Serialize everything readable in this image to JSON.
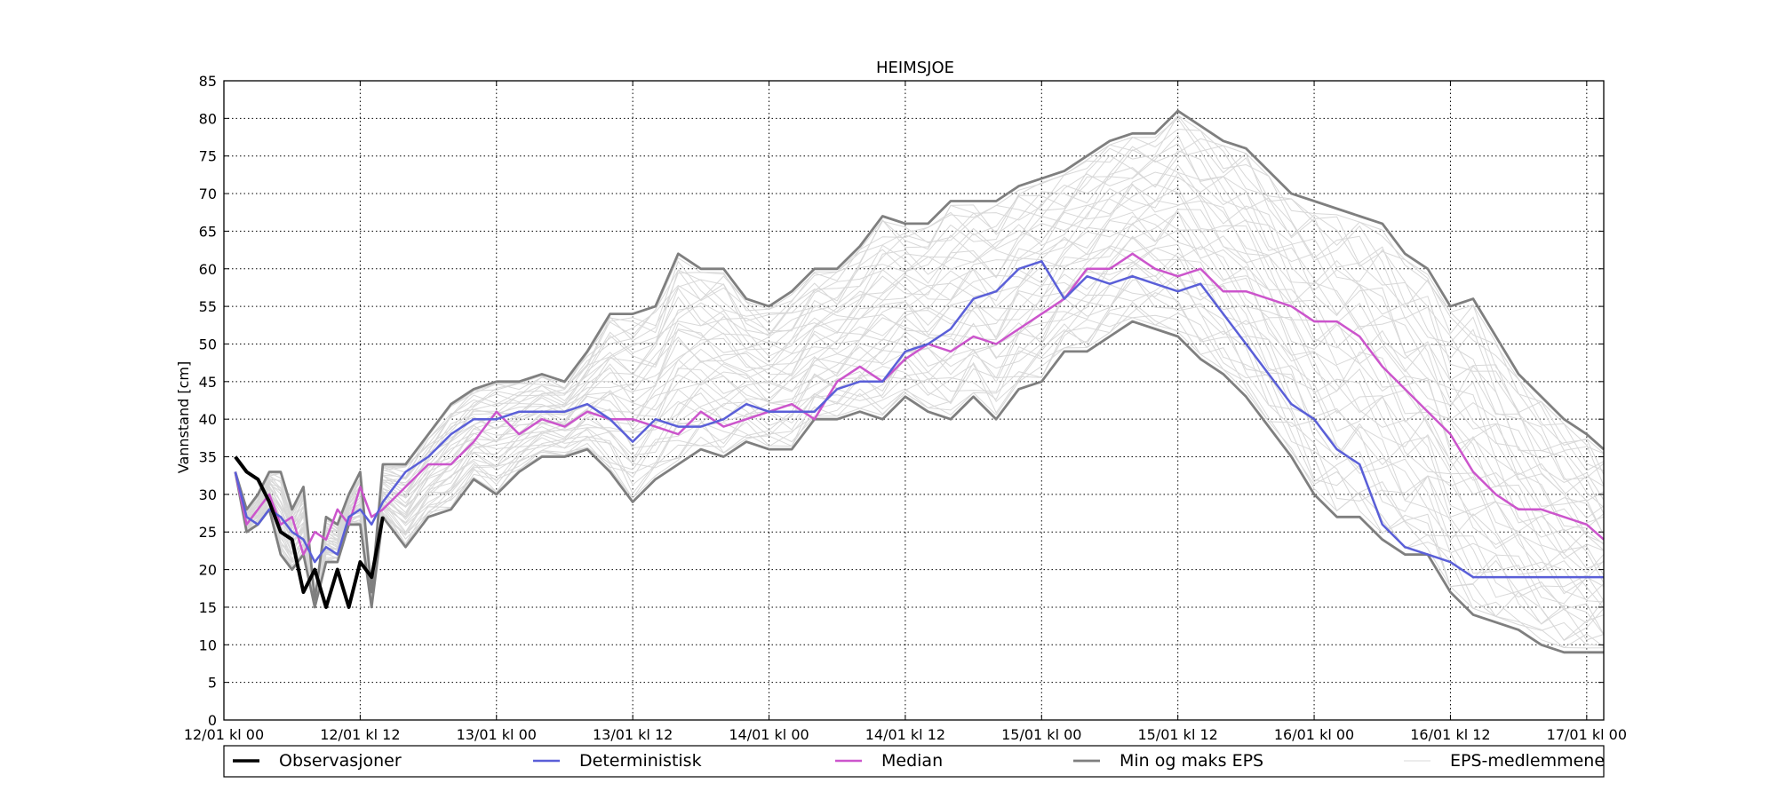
{
  "chart_data": {
    "type": "line",
    "title": "HEIMSJOE",
    "ylabel": "Vannstand [cm]",
    "xlabel": "",
    "ylim": [
      0,
      85
    ],
    "yticks": [
      0,
      5,
      10,
      15,
      20,
      25,
      30,
      35,
      40,
      45,
      50,
      55,
      60,
      65,
      70,
      75,
      80,
      85
    ],
    "x_unit": "hours",
    "xlim_hours": [
      0,
      121.5
    ],
    "xticks": [
      {
        "label": "12/01 kl 00",
        "h": 0
      },
      {
        "label": "12/01 kl 12",
        "h": 12
      },
      {
        "label": "13/01 kl 00",
        "h": 24
      },
      {
        "label": "13/01 kl 12",
        "h": 36
      },
      {
        "label": "14/01 kl 00",
        "h": 48
      },
      {
        "label": "14/01 kl 12",
        "h": 60
      },
      {
        "label": "15/01 kl 00",
        "h": 72
      },
      {
        "label": "15/01 kl 12",
        "h": 84
      },
      {
        "label": "16/01 kl 00",
        "h": 96
      },
      {
        "label": "16/01 kl 12",
        "h": 108
      },
      {
        "label": "17/01 kl 00",
        "h": 120
      }
    ],
    "grid": true,
    "legend_position": "bottom",
    "colors": {
      "observations": "#000000",
      "deterministic": "#5a5fd8",
      "median": "#cc55cc",
      "minmax": "#7f7f7f",
      "members": "#d8d8d8"
    },
    "legend": [
      {
        "label": "Observasjoner",
        "key": "observations"
      },
      {
        "label": "Deterministisk",
        "key": "deterministic"
      },
      {
        "label": "Median",
        "key": "median"
      },
      {
        "label": "Min og maks EPS",
        "key": "minmax"
      },
      {
        "label": "EPS-medlemmene",
        "key": "members"
      }
    ],
    "series": {
      "observations": {
        "name": "Observasjoner",
        "x": [
          1,
          2,
          3,
          4,
          5,
          6,
          7,
          8,
          9,
          10,
          11,
          12,
          13,
          14
        ],
        "y": [
          35,
          33,
          32,
          29,
          25,
          24,
          17,
          20,
          15,
          20,
          15,
          21,
          19,
          27
        ]
      },
      "deterministic": {
        "name": "Deterministisk",
        "x": [
          1,
          2,
          3,
          4,
          5,
          6,
          7,
          8,
          9,
          10,
          11,
          12,
          13,
          14,
          16,
          18,
          20,
          22,
          24,
          26,
          28,
          30,
          32,
          34,
          36,
          38,
          40,
          42,
          44,
          46,
          48,
          50,
          52,
          54,
          56,
          58,
          60,
          62,
          64,
          66,
          68,
          70,
          72,
          74,
          76,
          78,
          80,
          82,
          84,
          86,
          88,
          90,
          92,
          94,
          96,
          98,
          100,
          102,
          104,
          106,
          108,
          110,
          112,
          114,
          116,
          118,
          120,
          121.5
        ],
        "y": [
          33,
          27,
          26,
          28,
          27,
          25,
          24,
          21,
          23,
          22,
          27,
          28,
          26,
          29,
          33,
          35,
          38,
          40,
          40,
          41,
          41,
          41,
          42,
          40,
          37,
          40,
          39,
          39,
          40,
          42,
          41,
          41,
          41,
          44,
          45,
          45,
          49,
          50,
          52,
          56,
          57,
          60,
          61,
          56,
          59,
          58,
          59,
          58,
          57,
          58,
          54,
          50,
          46,
          42,
          40,
          36,
          34,
          26,
          23,
          22,
          21,
          19,
          19,
          19,
          19,
          19,
          19,
          19
        ]
      },
      "median": {
        "name": "Median",
        "x": [
          1,
          2,
          3,
          4,
          5,
          6,
          7,
          8,
          9,
          10,
          11,
          12,
          13,
          14,
          16,
          18,
          20,
          22,
          24,
          26,
          28,
          30,
          32,
          34,
          36,
          38,
          40,
          42,
          44,
          46,
          48,
          50,
          52,
          54,
          56,
          58,
          60,
          62,
          64,
          66,
          68,
          70,
          72,
          74,
          76,
          78,
          80,
          82,
          84,
          86,
          88,
          90,
          92,
          94,
          96,
          98,
          100,
          102,
          104,
          106,
          108,
          110,
          112,
          114,
          116,
          118,
          120,
          121.5
        ],
        "y": [
          33,
          26,
          28,
          30,
          26,
          27,
          22,
          25,
          24,
          28,
          26,
          31,
          27,
          28,
          31,
          34,
          34,
          37,
          41,
          38,
          40,
          39,
          41,
          40,
          40,
          39,
          38,
          41,
          39,
          40,
          41,
          42,
          40,
          45,
          47,
          45,
          48,
          50,
          49,
          51,
          50,
          52,
          54,
          56,
          60,
          60,
          62,
          60,
          59,
          60,
          57,
          57,
          56,
          55,
          53,
          53,
          51,
          47,
          44,
          41,
          38,
          33,
          30,
          28,
          28,
          27,
          26,
          24
        ]
      },
      "min": {
        "name": "Min",
        "x": [
          1,
          2,
          3,
          4,
          5,
          6,
          7,
          8,
          9,
          10,
          11,
          12,
          13,
          14,
          16,
          18,
          20,
          22,
          24,
          26,
          28,
          30,
          32,
          34,
          36,
          38,
          40,
          42,
          44,
          46,
          48,
          50,
          52,
          54,
          56,
          58,
          60,
          62,
          64,
          66,
          68,
          70,
          72,
          74,
          76,
          78,
          80,
          82,
          84,
          86,
          88,
          90,
          92,
          94,
          96,
          98,
          100,
          102,
          104,
          106,
          108,
          110,
          112,
          114,
          116,
          118,
          120,
          121.5
        ],
        "y": [
          33,
          25,
          26,
          28,
          22,
          20,
          22,
          15,
          21,
          21,
          26,
          26,
          15,
          27,
          23,
          27,
          28,
          32,
          30,
          33,
          35,
          35,
          36,
          33,
          29,
          32,
          34,
          36,
          35,
          37,
          36,
          36,
          40,
          40,
          41,
          40,
          43,
          41,
          40,
          43,
          40,
          44,
          45,
          49,
          49,
          51,
          53,
          52,
          51,
          48,
          46,
          43,
          39,
          35,
          30,
          27,
          27,
          24,
          22,
          22,
          17,
          14,
          13,
          12,
          10,
          9,
          9,
          9
        ]
      },
      "max": {
        "name": "Max",
        "x": [
          1,
          2,
          3,
          4,
          5,
          6,
          7,
          8,
          9,
          10,
          11,
          12,
          13,
          14,
          16,
          18,
          20,
          22,
          24,
          26,
          28,
          30,
          32,
          34,
          36,
          38,
          40,
          42,
          44,
          46,
          48,
          50,
          52,
          54,
          56,
          58,
          60,
          62,
          64,
          66,
          68,
          70,
          72,
          74,
          76,
          78,
          80,
          82,
          84,
          86,
          88,
          90,
          92,
          94,
          96,
          98,
          100,
          102,
          104,
          106,
          108,
          110,
          112,
          114,
          116,
          118,
          120,
          121.5
        ],
        "y": [
          33,
          28,
          30,
          33,
          33,
          28,
          31,
          16,
          27,
          26,
          30,
          33,
          17,
          34,
          34,
          38,
          42,
          44,
          45,
          45,
          46,
          45,
          49,
          54,
          54,
          55,
          62,
          60,
          60,
          56,
          55,
          57,
          60,
          60,
          63,
          67,
          66,
          66,
          69,
          69,
          69,
          71,
          72,
          73,
          75,
          77,
          78,
          78,
          81,
          79,
          77,
          76,
          73,
          70,
          69,
          68,
          67,
          66,
          62,
          60,
          55,
          56,
          51,
          46,
          43,
          40,
          38,
          36
        ]
      }
    },
    "members_count": 40
  }
}
